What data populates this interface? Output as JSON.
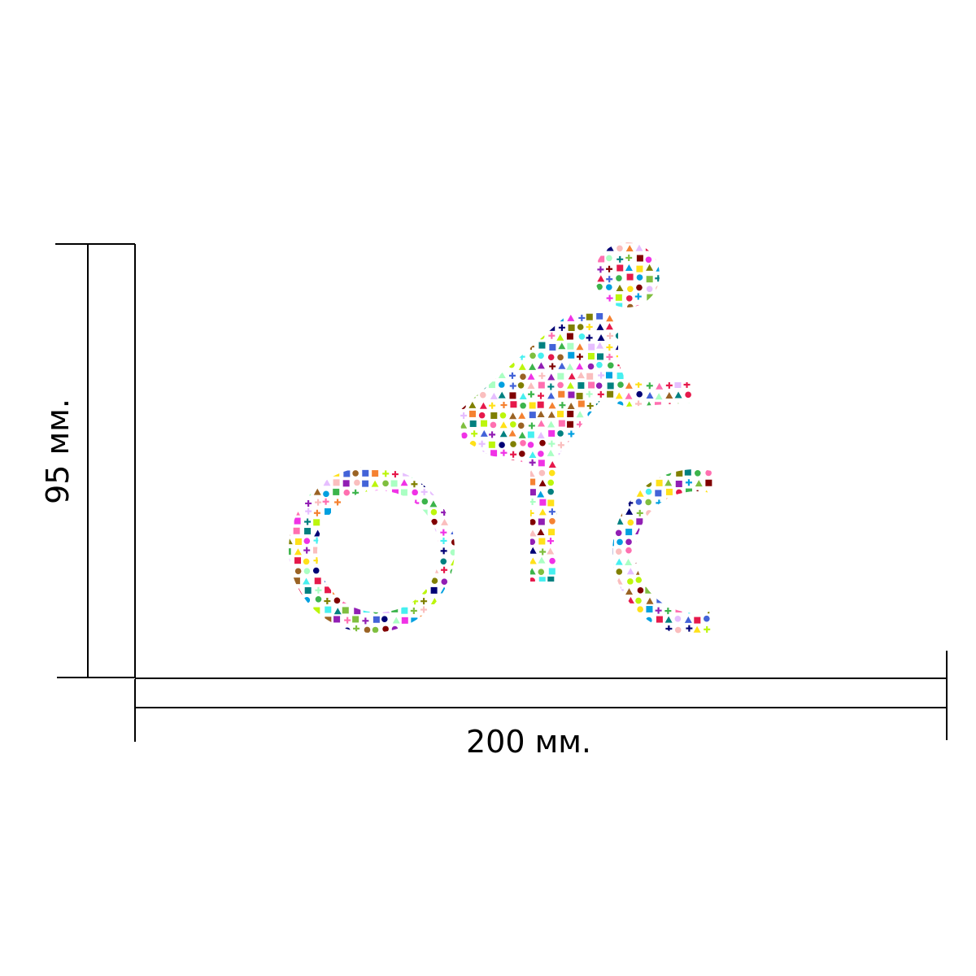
{
  "dimensions": {
    "height_label": "95 мм.",
    "width_label": "200 мм."
  },
  "figure": {
    "subject": "cyclist-icon",
    "fill_style": "mosaic of small colorful icons",
    "palette": [
      "#e6194b",
      "#3cb44b",
      "#ffe119",
      "#4363d8",
      "#f58231",
      "#911eb4",
      "#46f0f0",
      "#f032e6",
      "#bcf60c",
      "#fabebe",
      "#008080",
      "#e6beff",
      "#9a6324",
      "#800000",
      "#aaffc3",
      "#808000",
      "#000075",
      "#00a0e0",
      "#ff6fb0",
      "#7fbf3f"
    ]
  }
}
